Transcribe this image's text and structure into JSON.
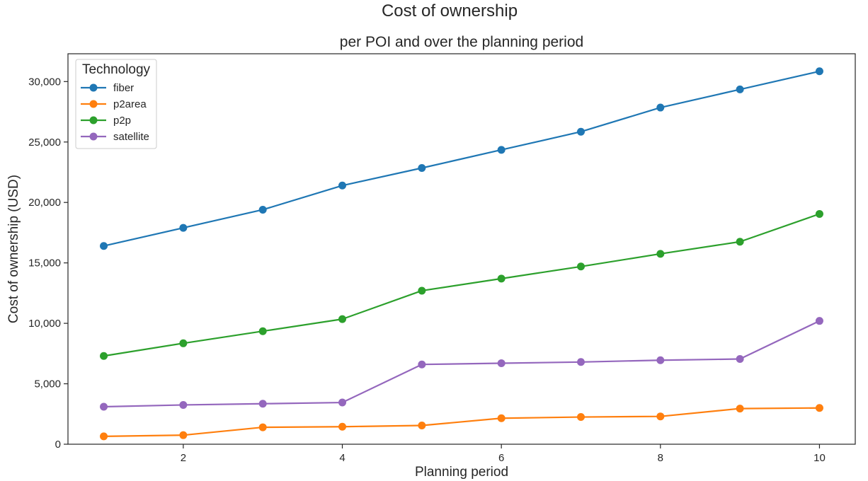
{
  "chart_data": {
    "type": "line",
    "title": "Cost of ownership",
    "subtitle": "per POI and over the planning period",
    "xlabel": "Planning period",
    "ylabel": "Cost of ownership (USD)",
    "x": [
      1,
      2,
      3,
      4,
      5,
      6,
      7,
      8,
      9,
      10
    ],
    "xlim": [
      0.55,
      10.45
    ],
    "ylim": [
      0,
      32300
    ],
    "xticks": [
      2,
      4,
      6,
      8,
      10
    ],
    "xtick_labels": [
      "2",
      "4",
      "6",
      "8",
      "10"
    ],
    "yticks": [
      0,
      5000,
      10000,
      15000,
      20000,
      25000,
      30000
    ],
    "ytick_labels": [
      "0",
      "5,000",
      "10,000",
      "15,000",
      "20,000",
      "25,000",
      "30,000"
    ],
    "grid": false,
    "legend": {
      "title": "Technology",
      "placement": "top-left"
    },
    "series": [
      {
        "name": "fiber",
        "color": "#1f77b4",
        "values": [
          16400,
          17900,
          19400,
          21400,
          22850,
          24350,
          25850,
          27850,
          29350,
          30850
        ]
      },
      {
        "name": "p2area",
        "color": "#ff7f0e",
        "values": [
          650,
          750,
          1400,
          1450,
          1550,
          2150,
          2250,
          2300,
          2950,
          3000
        ]
      },
      {
        "name": "p2p",
        "color": "#2ca02c",
        "values": [
          7300,
          8350,
          9350,
          10350,
          12700,
          13700,
          14700,
          15750,
          16750,
          19050
        ]
      },
      {
        "name": "satellite",
        "color": "#9467bd",
        "values": [
          3100,
          3250,
          3350,
          3450,
          6600,
          6700,
          6800,
          6950,
          7050,
          10200
        ]
      }
    ]
  }
}
